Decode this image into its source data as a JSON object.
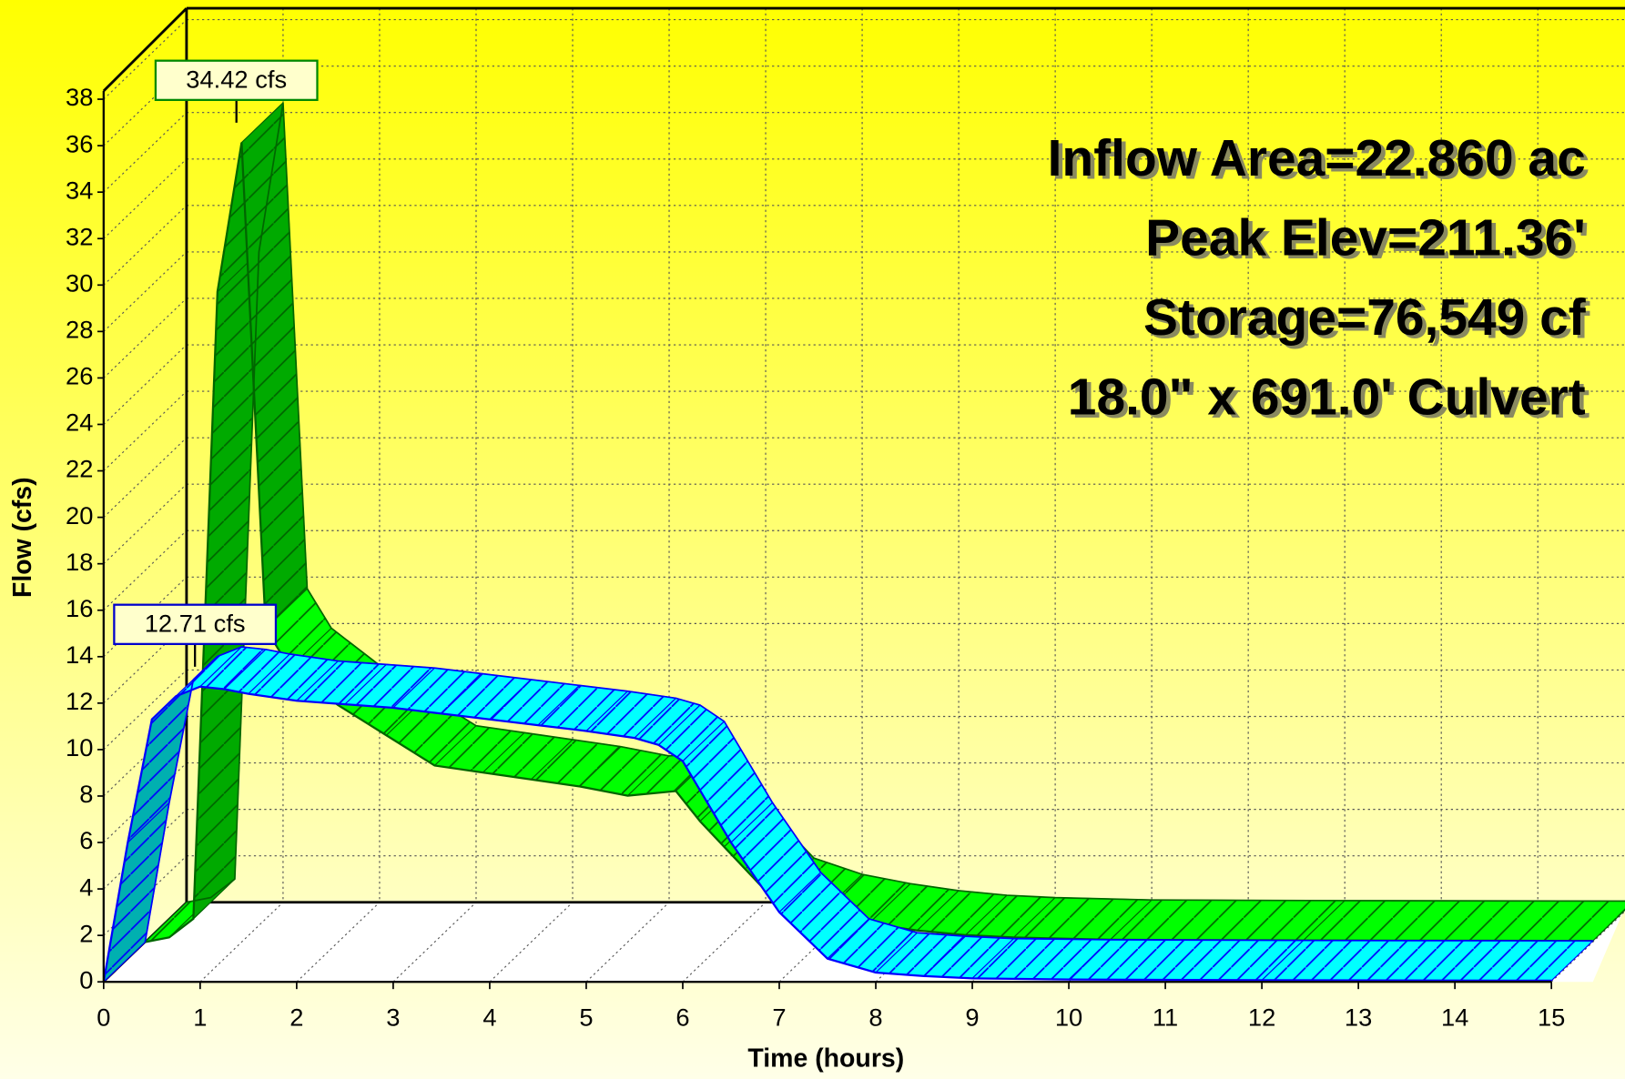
{
  "chart_data": {
    "type": "hydrograph",
    "x": [
      0,
      0.25,
      0.5,
      0.75,
      1,
      1.25,
      1.5,
      2,
      2.5,
      3,
      3.5,
      4,
      4.5,
      5,
      5.5,
      5.75,
      6,
      6.5,
      7,
      7.5,
      8,
      8.5,
      9,
      10,
      12,
      15
    ],
    "series": [
      {
        "color": "#00ff00",
        "values": [
          0,
          0.2,
          1,
          28,
          34.42,
          13.5,
          11.8,
          10.2,
          8.9,
          7.6,
          7.3,
          7,
          6.7,
          6.3,
          6.5,
          5.2,
          4.1,
          1.9,
          1.2,
          0.8,
          0.5,
          0.3,
          0.2,
          0.1,
          0.07,
          0.05
        ],
        "value_labels": [
          null,
          null,
          null,
          null,
          "34.42 cfs",
          null,
          null,
          null,
          null,
          null,
          null,
          null,
          null,
          null,
          null,
          null,
          null,
          null,
          null,
          null,
          null,
          null,
          null,
          null,
          null,
          null
        ]
      },
      {
        "color": "#00ffff",
        "values": [
          0,
          6,
          11.3,
          12.3,
          12.71,
          12.6,
          12.4,
          12.1,
          11.95,
          11.8,
          11.55,
          11.3,
          11.05,
          10.8,
          10.5,
          10.2,
          9.5,
          6,
          3,
          1,
          0.4,
          0.25,
          0.15,
          0.1,
          0.07,
          0.05
        ],
        "value_labels": [
          null,
          null,
          null,
          null,
          "12.71 cfs",
          null,
          null,
          null,
          null,
          null,
          null,
          null,
          null,
          null,
          null,
          null,
          null,
          null,
          null,
          null,
          null,
          null,
          null,
          null,
          null,
          null
        ]
      }
    ],
    "xlabel": "Time  (hours)",
    "ylabel": "Flow  (cfs)",
    "xlim": [
      0,
      15
    ],
    "xticks": [
      0,
      1,
      2,
      3,
      4,
      5,
      6,
      7,
      8,
      9,
      10,
      11,
      12,
      13,
      14,
      15
    ],
    "ylim": [
      0,
      38
    ],
    "yticks": [
      0,
      2,
      4,
      6,
      8,
      10,
      12,
      14,
      16,
      18,
      20,
      22,
      24,
      26,
      28,
      30,
      32,
      34,
      36,
      38
    ],
    "grid": true,
    "annotations": [
      "Inflow  Area=22.860 ac",
      "Peak Elev=211.36'",
      "Storage=76,549 cf",
      "18.0\" x 691.0' Culvert"
    ]
  }
}
